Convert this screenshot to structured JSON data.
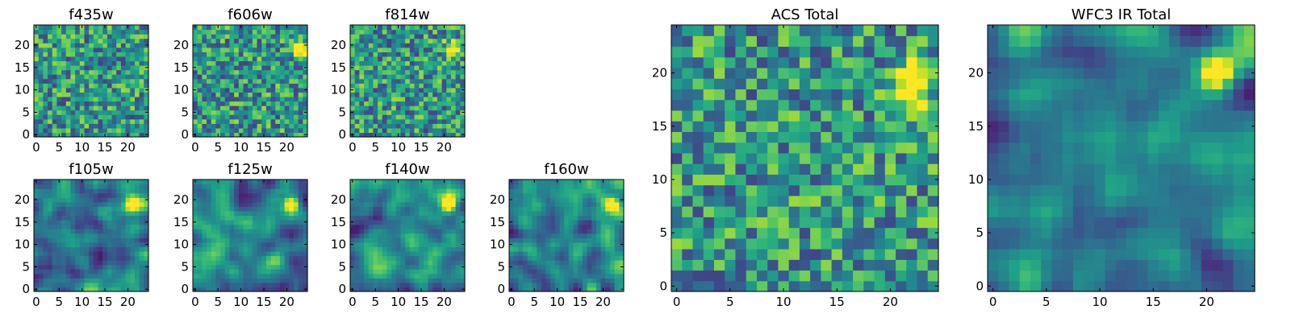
{
  "chart_data": [
    {
      "type": "heatmap",
      "title": "f435w",
      "size": 25,
      "xticks": [
        0,
        5,
        10,
        15,
        20
      ],
      "yticks": [
        0,
        5,
        10,
        15,
        20
      ],
      "colormap": "viridis",
      "hotspot": null,
      "style": "noise",
      "seed": 11
    },
    {
      "type": "heatmap",
      "title": "f606w",
      "size": 25,
      "xticks": [
        0,
        5,
        10,
        15,
        20
      ],
      "yticks": [
        0,
        5,
        10,
        15,
        20
      ],
      "colormap": "viridis",
      "hotspot": [
        23,
        19
      ],
      "style": "noise",
      "seed": 23
    },
    {
      "type": "heatmap",
      "title": "f814w",
      "size": 25,
      "xticks": [
        0,
        5,
        10,
        15,
        20
      ],
      "yticks": [
        0,
        5,
        10,
        15,
        20
      ],
      "colormap": "viridis",
      "hotspot": [
        22,
        19
      ],
      "style": "noise",
      "seed": 37
    },
    {
      "type": "heatmap",
      "title": "f105w",
      "size": 25,
      "xticks": [
        0,
        5,
        10,
        15,
        20
      ],
      "yticks": [
        0,
        5,
        10,
        15,
        20
      ],
      "colormap": "viridis",
      "hotspot": [
        21,
        19
      ],
      "style": "smooth",
      "seed": 41
    },
    {
      "type": "heatmap",
      "title": "f125w",
      "size": 25,
      "xticks": [
        0,
        5,
        10,
        15,
        20
      ],
      "yticks": [
        0,
        5,
        10,
        15,
        20
      ],
      "colormap": "viridis",
      "hotspot": [
        21,
        19
      ],
      "style": "smooth",
      "seed": 53
    },
    {
      "type": "heatmap",
      "title": "f140w",
      "size": 25,
      "xticks": [
        0,
        5,
        10,
        15,
        20
      ],
      "yticks": [
        0,
        5,
        10,
        15,
        20
      ],
      "colormap": "viridis",
      "hotspot": [
        21,
        19
      ],
      "style": "smooth",
      "seed": 67
    },
    {
      "type": "heatmap",
      "title": "f160w",
      "size": 25,
      "xticks": [
        0,
        5,
        10,
        15,
        20
      ],
      "yticks": [
        0,
        5,
        10,
        15,
        20
      ],
      "colormap": "viridis",
      "hotspot": [
        22,
        19
      ],
      "style": "smooth",
      "seed": 79
    },
    {
      "type": "heatmap",
      "title": "ACS Total",
      "size": 25,
      "xticks": [
        0,
        5,
        10,
        15,
        20
      ],
      "yticks": [
        0,
        5,
        10,
        15,
        20
      ],
      "colormap": "viridis",
      "hotspot": [
        22,
        19
      ],
      "style": "noise",
      "seed": 97
    },
    {
      "type": "heatmap",
      "title": "WFC3 IR Total",
      "size": 25,
      "xticks": [
        0,
        5,
        10,
        15,
        20
      ],
      "yticks": [
        0,
        5,
        10,
        15,
        20
      ],
      "colormap": "viridis",
      "hotspot": [
        21,
        20
      ],
      "style": "smooth",
      "seed": 113
    }
  ]
}
